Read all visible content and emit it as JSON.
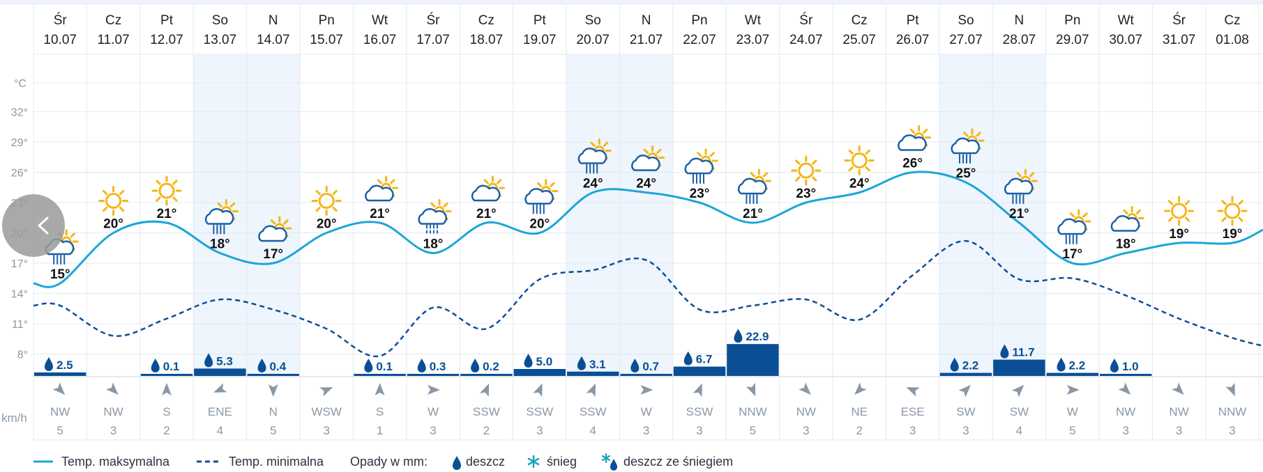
{
  "colors": {
    "max_line": "#1aa6d8",
    "min_line": "#0a4f95",
    "bar": "#0a4f95",
    "weekend_bg": "#eef5fc",
    "grid": "#e3e9f0",
    "sun": "#f5b614",
    "cloud": "#1b5fa8"
  },
  "units": {
    "temp": "°C",
    "wind": "km/h"
  },
  "nav": {
    "prev_icon": "chevron-left-icon"
  },
  "chart_data": {
    "type": "line",
    "title": "",
    "ylim": [
      5,
      35
    ],
    "yticks": [
      "32°",
      "29°",
      "26°",
      "23°",
      "20°",
      "17°",
      "14°",
      "11°",
      "8°"
    ],
    "ytick_values": [
      32,
      29,
      26,
      23,
      20,
      17,
      14,
      11,
      8
    ],
    "days": [
      {
        "name": "Śr",
        "date": "10.07",
        "weekend": false,
        "icon": "partly-cloudy-rain",
        "max": 15,
        "max_label": "15°",
        "min": 12.8,
        "precip": 2.5,
        "precip_label": "2.5",
        "wind_dir": "NW",
        "wind_speed": "5"
      },
      {
        "name": "Cz",
        "date": "11.07",
        "weekend": false,
        "icon": "sun",
        "max": 20,
        "max_label": "20°",
        "min": 9.8,
        "precip": 0,
        "precip_label": "",
        "wind_dir": "NW",
        "wind_speed": "3"
      },
      {
        "name": "Pt",
        "date": "12.07",
        "weekend": false,
        "icon": "sun",
        "max": 21,
        "max_label": "21°",
        "min": 11.5,
        "precip": 0.1,
        "precip_label": "0.1",
        "wind_dir": "S",
        "wind_speed": "2"
      },
      {
        "name": "So",
        "date": "13.07",
        "weekend": true,
        "icon": "partly-cloudy-rain",
        "max": 18,
        "max_label": "18°",
        "min": 13.4,
        "precip": 5.3,
        "precip_label": "5.3",
        "wind_dir": "ENE",
        "wind_speed": "4"
      },
      {
        "name": "N",
        "date": "14.07",
        "weekend": true,
        "icon": "partly-cloudy",
        "max": 17,
        "max_label": "17°",
        "min": 12.4,
        "precip": 0.4,
        "precip_label": "0.4",
        "wind_dir": "N",
        "wind_speed": "5"
      },
      {
        "name": "Pn",
        "date": "15.07",
        "weekend": false,
        "icon": "sun",
        "max": 20,
        "max_label": "20°",
        "min": 10.5,
        "precip": 0,
        "precip_label": "",
        "wind_dir": "WSW",
        "wind_speed": "3"
      },
      {
        "name": "Wt",
        "date": "16.07",
        "weekend": false,
        "icon": "partly-cloudy",
        "max": 21,
        "max_label": "21°",
        "min": 7.8,
        "precip": 0.1,
        "precip_label": "0.1",
        "wind_dir": "S",
        "wind_speed": "1"
      },
      {
        "name": "Śr",
        "date": "17.07",
        "weekend": false,
        "icon": "partly-cloudy-drizzle",
        "max": 18,
        "max_label": "18°",
        "min": 12.6,
        "precip": 0.3,
        "precip_label": "0.3",
        "wind_dir": "W",
        "wind_speed": "3"
      },
      {
        "name": "Cz",
        "date": "18.07",
        "weekend": false,
        "icon": "partly-cloudy",
        "max": 21,
        "max_label": "21°",
        "min": 10.5,
        "precip": 0.2,
        "precip_label": "0.2",
        "wind_dir": "SSW",
        "wind_speed": "2"
      },
      {
        "name": "Pt",
        "date": "19.07",
        "weekend": false,
        "icon": "partly-cloudy-rain",
        "max": 20,
        "max_label": "20°",
        "min": 15.4,
        "precip": 5.0,
        "precip_label": "5.0",
        "wind_dir": "SSW",
        "wind_speed": "3"
      },
      {
        "name": "So",
        "date": "20.07",
        "weekend": true,
        "icon": "partly-cloudy-rain",
        "max": 24,
        "max_label": "24°",
        "min": 16.3,
        "precip": 3.1,
        "precip_label": "3.1",
        "wind_dir": "SSW",
        "wind_speed": "4"
      },
      {
        "name": "N",
        "date": "21.07",
        "weekend": true,
        "icon": "partly-cloudy",
        "max": 24,
        "max_label": "24°",
        "min": 17.3,
        "precip": 0.7,
        "precip_label": "0.7",
        "wind_dir": "W",
        "wind_speed": "3"
      },
      {
        "name": "Pn",
        "date": "22.07",
        "weekend": false,
        "icon": "partly-cloudy-rain",
        "max": 23,
        "max_label": "23°",
        "min": 12.4,
        "precip": 6.7,
        "precip_label": "6.7",
        "wind_dir": "SSW",
        "wind_speed": "3"
      },
      {
        "name": "Wt",
        "date": "23.07",
        "weekend": false,
        "icon": "partly-cloudy-rain",
        "max": 21,
        "max_label": "21°",
        "min": 12.8,
        "precip": 22.9,
        "precip_label": "22.9",
        "wind_dir": "NNW",
        "wind_speed": "5"
      },
      {
        "name": "Śr",
        "date": "24.07",
        "weekend": false,
        "icon": "sun",
        "max": 23,
        "max_label": "23°",
        "min": 13.4,
        "precip": 0,
        "precip_label": "",
        "wind_dir": "NW",
        "wind_speed": "3"
      },
      {
        "name": "Cz",
        "date": "25.07",
        "weekend": false,
        "icon": "sun",
        "max": 24,
        "max_label": "24°",
        "min": 11.4,
        "precip": 0,
        "precip_label": "",
        "wind_dir": "NE",
        "wind_speed": "2"
      },
      {
        "name": "Pt",
        "date": "26.07",
        "weekend": false,
        "icon": "partly-cloudy",
        "max": 26,
        "max_label": "26°",
        "min": 15.8,
        "precip": 0,
        "precip_label": "",
        "wind_dir": "ESE",
        "wind_speed": "3"
      },
      {
        "name": "So",
        "date": "27.07",
        "weekend": true,
        "icon": "partly-cloudy-rain",
        "max": 25,
        "max_label": "25°",
        "min": 19.2,
        "precip": 2.2,
        "precip_label": "2.2",
        "wind_dir": "SW",
        "wind_speed": "3"
      },
      {
        "name": "N",
        "date": "28.07",
        "weekend": true,
        "icon": "partly-cloudy-rain",
        "max": 21,
        "max_label": "21°",
        "min": 15.4,
        "precip": 11.7,
        "precip_label": "11.7",
        "wind_dir": "SW",
        "wind_speed": "4"
      },
      {
        "name": "Pn",
        "date": "29.07",
        "weekend": false,
        "icon": "partly-cloudy-rain",
        "max": 17,
        "max_label": "17°",
        "min": 15.5,
        "precip": 2.2,
        "precip_label": "2.2",
        "wind_dir": "W",
        "wind_speed": "5"
      },
      {
        "name": "Wt",
        "date": "30.07",
        "weekend": false,
        "icon": "partly-cloudy",
        "max": 18,
        "max_label": "18°",
        "min": 13.8,
        "precip": 1.0,
        "precip_label": "1.0",
        "wind_dir": "NW",
        "wind_speed": "3"
      },
      {
        "name": "Śr",
        "date": "31.07",
        "weekend": false,
        "icon": "sun",
        "max": 19,
        "max_label": "19°",
        "min": 11.5,
        "precip": 0,
        "precip_label": "",
        "wind_dir": "NW",
        "wind_speed": "3"
      },
      {
        "name": "Cz",
        "date": "01.08",
        "weekend": false,
        "icon": "sun",
        "max": 19,
        "max_label": "19°",
        "min": 9.6,
        "precip": 0,
        "precip_label": "",
        "wind_dir": "NNW",
        "wind_speed": "3"
      }
    ],
    "series": [
      {
        "name": "Temp. maksymalna",
        "key": "max"
      },
      {
        "name": "Temp. minimalna",
        "key": "min"
      }
    ],
    "line_end": {
      "max": 20.3,
      "min": 8.8
    }
  },
  "legend": {
    "max_label": "Temp. maksymalna",
    "min_label": "Temp. minimalna",
    "precip_title": "Opady w mm:",
    "rain_label": "deszcz",
    "snow_label": "śnieg",
    "sleet_label": "deszcz ze śniegiem"
  }
}
